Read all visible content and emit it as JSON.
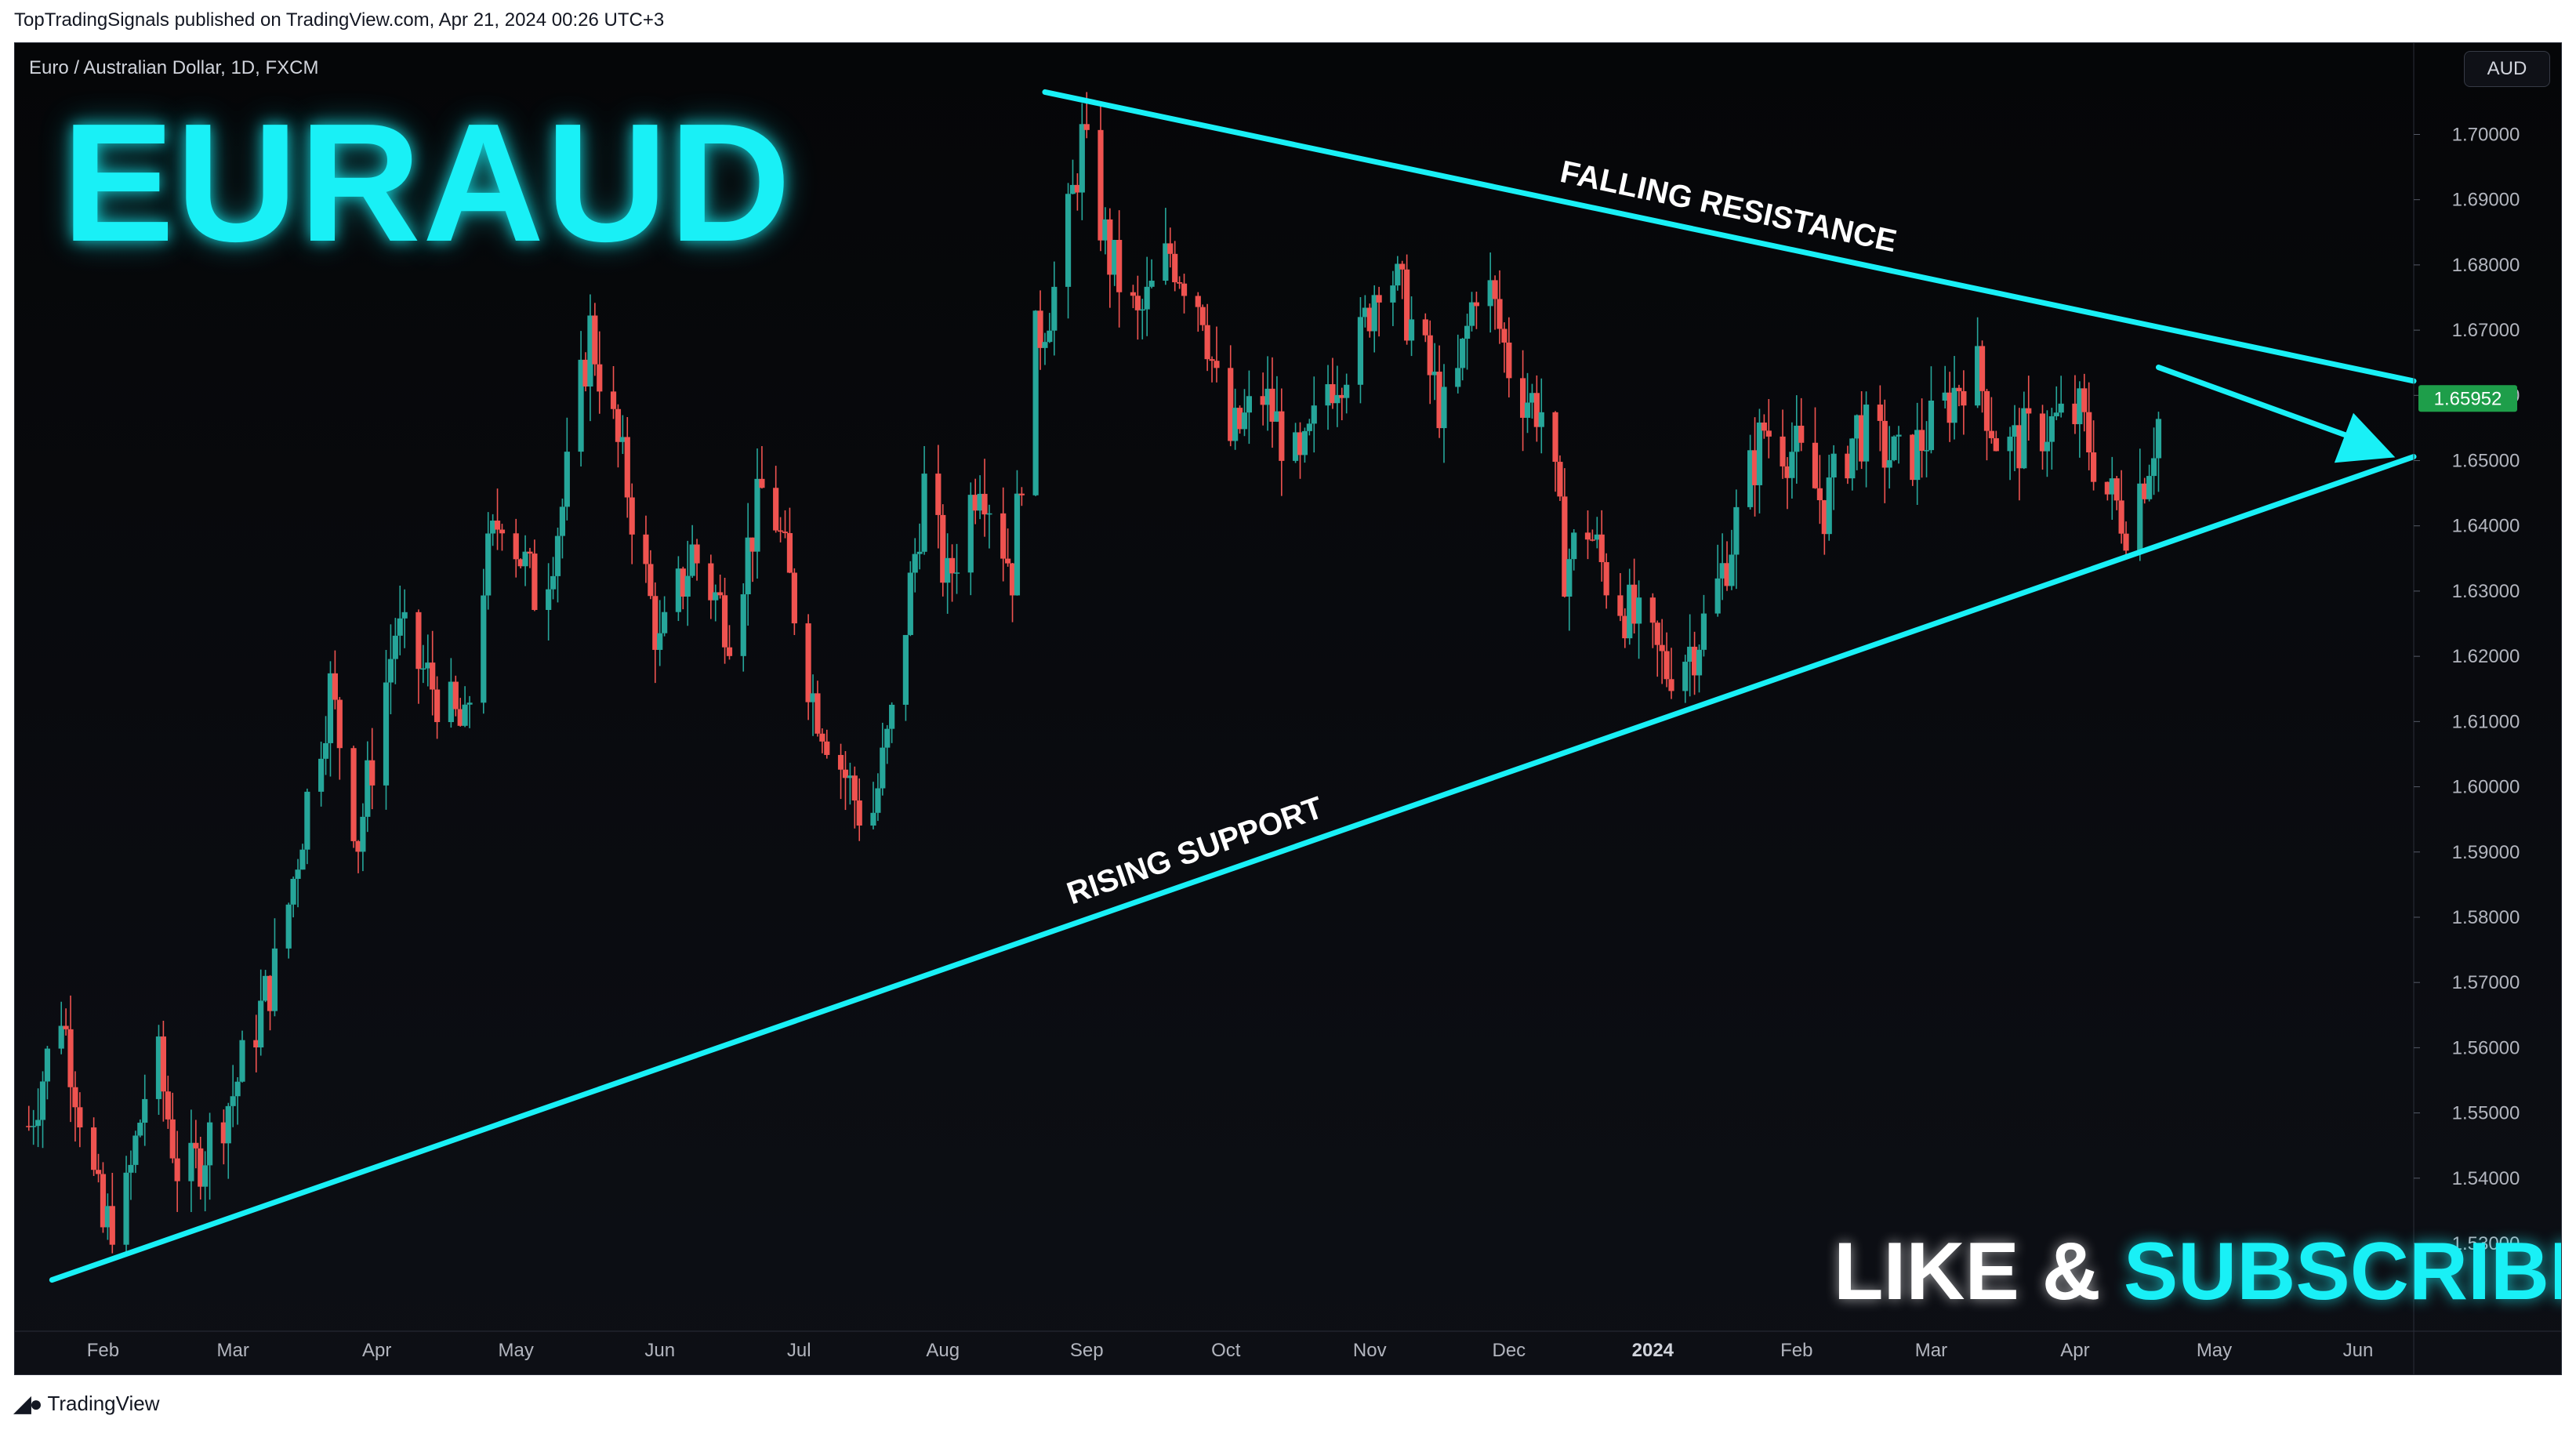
{
  "header": {
    "published": "TopTradingSignals published on TradingView.com, Apr 21, 2024 00:26 UTC+3"
  },
  "symbol": {
    "info": "Euro / Australian Dollar, 1D, FXCM",
    "currency_button": "AUD"
  },
  "overlay": {
    "title": "EURAUD",
    "cta_like": "LIKE &",
    "cta_subscribe": "SUBSCRIBE",
    "annotation_resistance": "FALLING RESISTANCE",
    "annotation_support": "RISING SUPPORT"
  },
  "footer": {
    "brand": "TradingView",
    "logo_icon": "tradingview-logo-icon"
  },
  "colors": {
    "accent": "#19f0f6",
    "up": "#26a69a",
    "down": "#ef5350",
    "price_badge": "#1e9e4a"
  },
  "chart_data": {
    "type": "candlestick",
    "y_ticks": [
      "1.53000",
      "1.54000",
      "1.55000",
      "1.56000",
      "1.57000",
      "1.58000",
      "1.59000",
      "1.60000",
      "1.61000",
      "1.62000",
      "1.63000",
      "1.64000",
      "1.65000",
      "1.66000",
      "1.67000",
      "1.68000",
      "1.69000",
      "1.70000"
    ],
    "ylim": [
      1.5175,
      1.714
    ],
    "x_labels": [
      {
        "label": "Feb",
        "date": "2023-02-01"
      },
      {
        "label": "Mar",
        "date": "2023-03-01"
      },
      {
        "label": "Apr",
        "date": "2023-04-01"
      },
      {
        "label": "May",
        "date": "2023-05-01"
      },
      {
        "label": "Jun",
        "date": "2023-06-01"
      },
      {
        "label": "Jul",
        "date": "2023-07-01"
      },
      {
        "label": "Aug",
        "date": "2023-08-01"
      },
      {
        "label": "Sep",
        "date": "2023-09-01"
      },
      {
        "label": "Oct",
        "date": "2023-10-01"
      },
      {
        "label": "Nov",
        "date": "2023-11-01"
      },
      {
        "label": "Dec",
        "date": "2023-12-01"
      },
      {
        "label": "2024",
        "date": "2024-01-01",
        "bold": true
      },
      {
        "label": "Feb",
        "date": "2024-02-01"
      },
      {
        "label": "Mar",
        "date": "2024-03-01"
      },
      {
        "label": "Apr",
        "date": "2024-04-01"
      },
      {
        "label": "May",
        "date": "2024-05-01"
      },
      {
        "label": "Jun",
        "date": "2024-06-01"
      }
    ],
    "xlim": [
      "2023-01-13",
      "2024-06-13"
    ],
    "last_price": "1.65952",
    "last_price_value": 1.65952,
    "path_points": [
      [
        "2023-01-16",
        1.548
      ],
      [
        "2023-01-23",
        1.566
      ],
      [
        "2023-02-01",
        1.532
      ],
      [
        "2023-02-06",
        1.537
      ],
      [
        "2023-02-12",
        1.561
      ],
      [
        "2023-02-18",
        1.538
      ],
      [
        "2023-03-01",
        1.553
      ],
      [
        "2023-03-11",
        1.574
      ],
      [
        "2023-03-17",
        1.598
      ],
      [
        "2023-03-22",
        1.615
      ],
      [
        "2023-03-28",
        1.592
      ],
      [
        "2023-04-05",
        1.624
      ],
      [
        "2023-04-20",
        1.608
      ],
      [
        "2023-04-24",
        1.632
      ],
      [
        "2023-04-28",
        1.643
      ],
      [
        "2023-05-06",
        1.628
      ],
      [
        "2023-05-11",
        1.643
      ],
      [
        "2023-05-17",
        1.67
      ],
      [
        "2023-05-25",
        1.646
      ],
      [
        "2023-06-01",
        1.621
      ],
      [
        "2023-06-08",
        1.636
      ],
      [
        "2023-06-16",
        1.625
      ],
      [
        "2023-06-24",
        1.648
      ],
      [
        "2023-07-04",
        1.614
      ],
      [
        "2023-07-16",
        1.593
      ],
      [
        "2023-07-21",
        1.61
      ],
      [
        "2023-07-28",
        1.646
      ],
      [
        "2023-08-02",
        1.631
      ],
      [
        "2023-08-09",
        1.649
      ],
      [
        "2023-08-16",
        1.633
      ],
      [
        "2023-08-20",
        1.666
      ],
      [
        "2023-08-26",
        1.678
      ],
      [
        "2023-08-31",
        1.699
      ],
      [
        "2023-09-06",
        1.681
      ],
      [
        "2023-09-12",
        1.671
      ],
      [
        "2023-09-19",
        1.682
      ],
      [
        "2023-09-26",
        1.674
      ],
      [
        "2023-10-01",
        1.652
      ],
      [
        "2023-10-09",
        1.66
      ],
      [
        "2023-10-17",
        1.648
      ],
      [
        "2023-10-23",
        1.662
      ],
      [
        "2023-10-30",
        1.668
      ],
      [
        "2023-11-04",
        1.682
      ],
      [
        "2023-11-11",
        1.669
      ],
      [
        "2023-11-18",
        1.655
      ],
      [
        "2023-11-25",
        1.681
      ],
      [
        "2023-12-02",
        1.662
      ],
      [
        "2023-12-09",
        1.657
      ],
      [
        "2023-12-13",
        1.634
      ],
      [
        "2023-12-18",
        1.64
      ],
      [
        "2023-12-22",
        1.632
      ],
      [
        "2023-12-30",
        1.623
      ],
      [
        "2024-01-04",
        1.618
      ],
      [
        "2024-01-10",
        1.622
      ],
      [
        "2024-01-14",
        1.628
      ],
      [
        "2024-01-20",
        1.643
      ],
      [
        "2024-01-25",
        1.655
      ],
      [
        "2024-02-01",
        1.651
      ],
      [
        "2024-02-07",
        1.643
      ],
      [
        "2024-02-14",
        1.655
      ],
      [
        "2024-02-24",
        1.649
      ],
      [
        "2024-03-04",
        1.658
      ],
      [
        "2024-03-10",
        1.666
      ],
      [
        "2024-03-16",
        1.651
      ],
      [
        "2024-03-25",
        1.655
      ],
      [
        "2024-04-02",
        1.657
      ],
      [
        "2024-04-07",
        1.646
      ],
      [
        "2024-04-12",
        1.641
      ],
      [
        "2024-04-16",
        1.648
      ],
      [
        "2024-04-20",
        1.659
      ]
    ],
    "trendlines": [
      {
        "name": "FALLING RESISTANCE",
        "from": [
          "2023-08-23",
          1.7065
        ],
        "to": [
          "2024-06-13",
          1.6622
        ]
      },
      {
        "name": "RISING SUPPORT",
        "from": [
          "2023-01-21",
          1.5244
        ],
        "to": [
          "2024-06-13",
          1.6506
        ]
      }
    ]
  }
}
